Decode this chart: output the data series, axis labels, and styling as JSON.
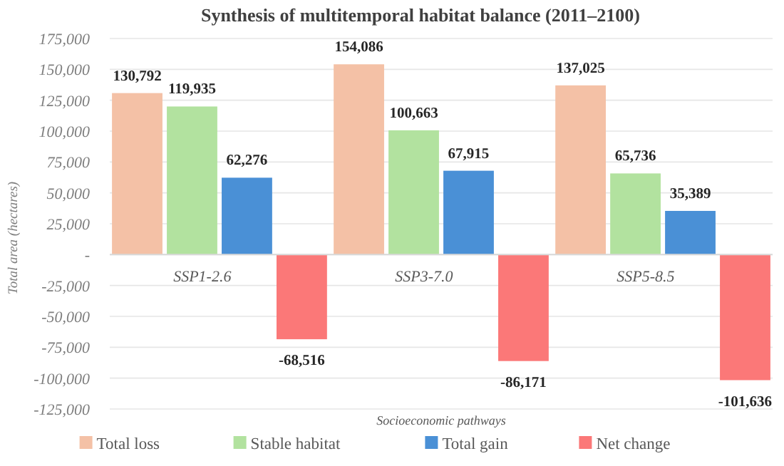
{
  "chart_data": {
    "type": "bar",
    "title": "Synthesis of multitemporal habitat balance (2011–2100)",
    "xlabel": "Socioeconomic pathways",
    "ylabel": "Total area (hectares)",
    "categories": [
      "SSP1-2.6",
      "SSP3-7.0",
      "SSP5-8.5"
    ],
    "series": [
      {
        "name": "Total loss",
        "color": "#f4c1a6",
        "values": [
          130792,
          154086,
          137025
        ],
        "value_labels": [
          "130,792",
          "154,086",
          "137,025"
        ]
      },
      {
        "name": "Stable habitat",
        "color": "#b2e29f",
        "values": [
          119935,
          100663,
          65736
        ],
        "value_labels": [
          "119,935",
          "100,663",
          "65,736"
        ]
      },
      {
        "name": "Total gain",
        "color": "#4a90d6",
        "values": [
          62276,
          67915,
          35389
        ],
        "value_labels": [
          "62,276",
          "67,915",
          "35,389"
        ]
      },
      {
        "name": "Net change",
        "color": "#fb7878",
        "values": [
          -68516,
          -86171,
          -101636
        ],
        "value_labels": [
          "-68,516",
          "-86,171",
          "-101,636"
        ]
      }
    ],
    "ylim": [
      -125000,
      175000
    ],
    "yticks": [
      {
        "value": -125000,
        "label": "-125,000"
      },
      {
        "value": -100000,
        "label": "-100,000"
      },
      {
        "value": -75000,
        "label": "-75,000"
      },
      {
        "value": -50000,
        "label": "-50,000"
      },
      {
        "value": -25000,
        "label": "-25,000"
      },
      {
        "value": 0,
        "label": "-"
      },
      {
        "value": 25000,
        "label": "25,000"
      },
      {
        "value": 50000,
        "label": "50,000"
      },
      {
        "value": 75000,
        "label": "75,000"
      },
      {
        "value": 100000,
        "label": "100,000"
      },
      {
        "value": 125000,
        "label": "125,000"
      },
      {
        "value": 150000,
        "label": "150,000"
      },
      {
        "value": 175000,
        "label": "175,000"
      }
    ],
    "grid": "y",
    "legend": "bottom"
  }
}
